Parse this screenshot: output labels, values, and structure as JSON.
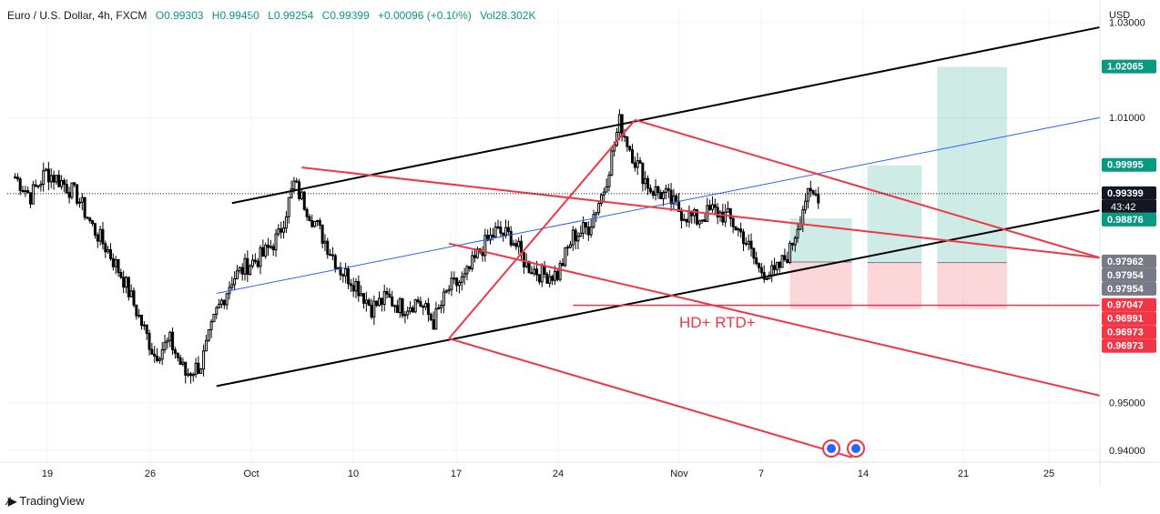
{
  "legend": {
    "symbol": "Euro / U.S. Dollar, 4h, FXCM",
    "open": "O0.99303",
    "high": "H0.99450",
    "low": "L0.99254",
    "close": "C0.99399",
    "change": "+0.00096 (+0.10%)",
    "volume": "Vol28.302K"
  },
  "currency": "USD",
  "brand": "TradingView",
  "countdown": "43:42",
  "annotation": "HD+ RTD+",
  "chart_data": {
    "type": "candlestick",
    "x_ticks": [
      "19",
      "26",
      "Oct",
      "10",
      "17",
      "24",
      "Nov",
      "7",
      "14",
      "21",
      "25"
    ],
    "y_ticks": [
      1.03,
      1.01,
      0.95,
      0.94
    ],
    "y_tick_labels": [
      "1.03000",
      "1.01000",
      "0.95000",
      "0.94000"
    ],
    "ylim": [
      0.9375,
      1.0332
    ],
    "last_price": 0.99399,
    "price_labels": [
      {
        "text": "1.02065",
        "value": 1.02065,
        "color": "#089981"
      },
      {
        "text": "0.99995",
        "value": 0.99995,
        "color": "#089981"
      },
      {
        "text": "0.99399",
        "value": 0.99399,
        "color": "#131722"
      },
      {
        "text": "0.98876",
        "value": 0.98876,
        "color": "#089981"
      },
      {
        "text": "0.97962",
        "value": 0.97962,
        "color": "#787b86"
      },
      {
        "text": "0.97954",
        "value": 0.97954,
        "color": "#787b86"
      },
      {
        "text": "0.97954",
        "value": 0.97954,
        "color": "#787b86"
      },
      {
        "text": "0.97047",
        "value": 0.97047,
        "color": "#f23645"
      },
      {
        "text": "0.96991",
        "value": 0.96991,
        "color": "#f23645"
      },
      {
        "text": "0.96973",
        "value": 0.96973,
        "color": "#f23645"
      },
      {
        "text": "0.96973",
        "value": 0.96973,
        "color": "#f23645"
      }
    ],
    "price_path": [
      {
        "x": 0,
        "y": 0.9975
      },
      {
        "x": 1,
        "y": 0.9935
      },
      {
        "x": 2,
        "y": 0.9985
      },
      {
        "x": 3,
        "y": 0.9965
      },
      {
        "x": 4,
        "y": 0.9935
      },
      {
        "x": 5,
        "y": 0.987
      },
      {
        "x": 6,
        "y": 0.982
      },
      {
        "x": 7,
        "y": 0.976
      },
      {
        "x": 8,
        "y": 0.968
      },
      {
        "x": 9,
        "y": 0.96
      },
      {
        "x": 10,
        "y": 0.963
      },
      {
        "x": 11,
        "y": 0.956
      },
      {
        "x": 12,
        "y": 0.958
      },
      {
        "x": 13,
        "y": 0.969
      },
      {
        "x": 14,
        "y": 0.976
      },
      {
        "x": 15,
        "y": 0.979
      },
      {
        "x": 16,
        "y": 0.981
      },
      {
        "x": 17,
        "y": 0.985
      },
      {
        "x": 18,
        "y": 0.996
      },
      {
        "x": 19,
        "y": 0.99
      },
      {
        "x": 20,
        "y": 0.984
      },
      {
        "x": 21,
        "y": 0.978
      },
      {
        "x": 22,
        "y": 0.975
      },
      {
        "x": 23,
        "y": 0.97
      },
      {
        "x": 24,
        "y": 0.972
      },
      {
        "x": 25,
        "y": 0.97
      },
      {
        "x": 26,
        "y": 0.9715
      },
      {
        "x": 27,
        "y": 0.967
      },
      {
        "x": 28,
        "y": 0.974
      },
      {
        "x": 29,
        "y": 0.976
      },
      {
        "x": 30,
        "y": 0.982
      },
      {
        "x": 31,
        "y": 0.986
      },
      {
        "x": 32,
        "y": 0.985
      },
      {
        "x": 33,
        "y": 0.979
      },
      {
        "x": 34,
        "y": 0.977
      },
      {
        "x": 35,
        "y": 0.977
      },
      {
        "x": 36,
        "y": 0.985
      },
      {
        "x": 37,
        "y": 0.987
      },
      {
        "x": 38,
        "y": 0.995
      },
      {
        "x": 39,
        "y": 1.009
      },
      {
        "x": 40,
        "y": 1.001
      },
      {
        "x": 41,
        "y": 0.995
      },
      {
        "x": 42,
        "y": 0.9935
      },
      {
        "x": 43,
        "y": 0.99
      },
      {
        "x": 44,
        "y": 0.9885
      },
      {
        "x": 45,
        "y": 0.9905
      },
      {
        "x": 46,
        "y": 0.989
      },
      {
        "x": 47,
        "y": 0.985
      },
      {
        "x": 48,
        "y": 0.978
      },
      {
        "x": 49,
        "y": 0.977
      },
      {
        "x": 50,
        "y": 0.982
      },
      {
        "x": 51,
        "y": 0.993
      },
      {
        "x": 52,
        "y": 0.994
      }
    ],
    "lines": [
      {
        "name": "channel-upper",
        "color": "#000000",
        "width": 2,
        "points": [
          [
            14,
            0.992
          ],
          [
            70,
            1.029
          ]
        ]
      },
      {
        "name": "channel-lower",
        "color": "#000000",
        "width": 2,
        "points": [
          [
            13,
            0.9535
          ],
          [
            70,
            0.9905
          ]
        ]
      },
      {
        "name": "channel-mid",
        "color": "#2962ff",
        "width": 1,
        "points": [
          [
            13,
            0.973
          ],
          [
            70,
            1.01
          ]
        ]
      },
      {
        "name": "fork-1",
        "color": "#f23645",
        "width": 2,
        "points": [
          [
            18.5,
            0.9995
          ],
          [
            70,
            0.9805
          ]
        ]
      },
      {
        "name": "fork-2",
        "color": "#f23645",
        "width": 2,
        "points": [
          [
            40,
            1.0095
          ],
          [
            70,
            0.9805
          ]
        ]
      },
      {
        "name": "fork-3",
        "color": "#f23645",
        "width": 2,
        "points": [
          [
            28,
            0.9835
          ],
          [
            70,
            0.9515
          ]
        ]
      },
      {
        "name": "fork-4",
        "color": "#f23645",
        "width": 2,
        "points": [
          [
            28,
            0.9635
          ],
          [
            54,
            0.9385
          ]
        ]
      },
      {
        "name": "swing-up",
        "color": "#f23645",
        "width": 2,
        "points": [
          [
            28,
            0.9635
          ],
          [
            40,
            1.0095
          ]
        ]
      },
      {
        "name": "support",
        "color": "#f23645",
        "width": 1.5,
        "points": [
          [
            36,
            0.9705
          ],
          [
            70,
            0.9705
          ]
        ]
      }
    ],
    "positions": [
      {
        "x0": 50,
        "x1": 54,
        "entry": 0.9796,
        "target": 0.9888,
        "stop": 0.9697
      },
      {
        "x0": 55,
        "x1": 58.5,
        "entry": 0.9795,
        "target": 0.99995,
        "stop": 0.9697
      },
      {
        "x0": 59.5,
        "x1": 64,
        "entry": 0.9795,
        "target": 1.02065,
        "stop": 0.9697
      }
    ],
    "xlim": [
      -0.5,
      70
    ]
  },
  "colors": {
    "bull": "#089981",
    "bear": "#f23645",
    "candle": "#000000",
    "grid": "#f0f3fa",
    "axis_text": "#131722"
  }
}
